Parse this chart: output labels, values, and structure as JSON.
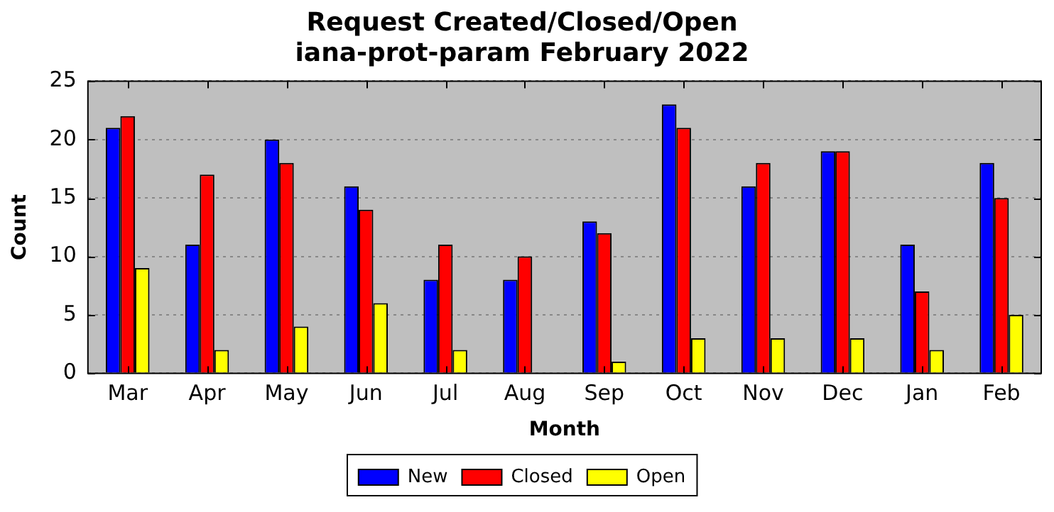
{
  "chart_data": {
    "type": "bar",
    "title": "Request Created/Closed/Open",
    "subtitle": "iana-prot-param February 2022",
    "xlabel": "Month",
    "ylabel": "Count",
    "categories": [
      "Mar",
      "Apr",
      "May",
      "Jun",
      "Jul",
      "Aug",
      "Sep",
      "Oct",
      "Nov",
      "Dec",
      "Jan",
      "Feb"
    ],
    "series": [
      {
        "name": "New",
        "color": "#0000ff",
        "values": [
          21,
          11,
          20,
          16,
          8,
          8,
          13,
          23,
          16,
          19,
          11,
          18
        ]
      },
      {
        "name": "Closed",
        "color": "#ff0000",
        "values": [
          22,
          17,
          18,
          14,
          11,
          10,
          12,
          21,
          18,
          19,
          7,
          15
        ]
      },
      {
        "name": "Open",
        "color": "#ffff00",
        "values": [
          9,
          2,
          4,
          6,
          2,
          0,
          1,
          3,
          3,
          3,
          2,
          5
        ]
      }
    ],
    "ylim": [
      0,
      25
    ],
    "yticks": [
      0,
      5,
      10,
      15,
      20,
      25
    ],
    "grid": "y",
    "legend": "bottom"
  }
}
